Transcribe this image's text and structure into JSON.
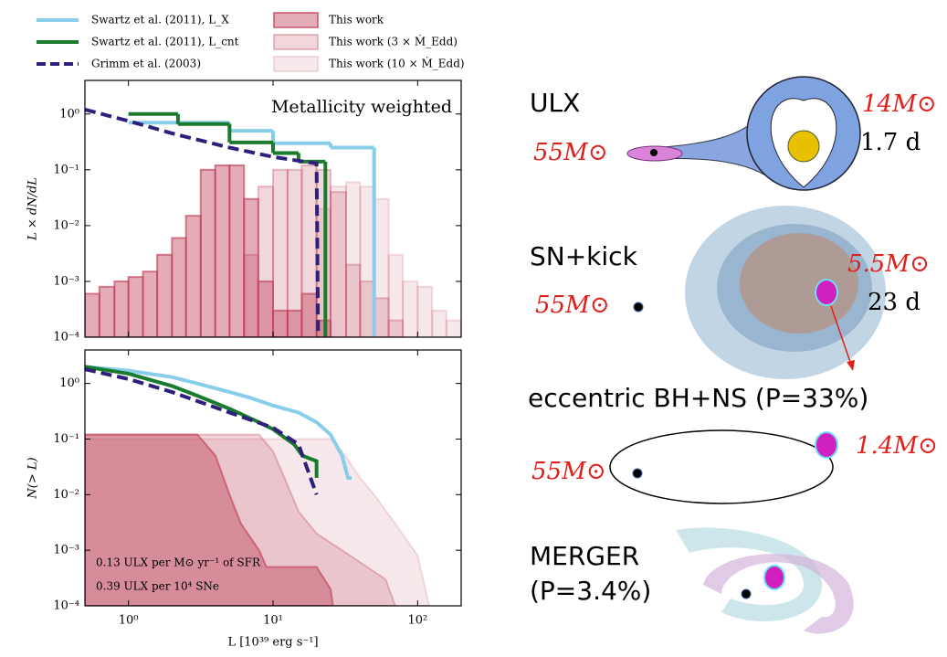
{
  "chart_data": [
    {
      "type": "line",
      "xscale": "log",
      "yscale": "log",
      "legend": "top",
      "ylabel": "L × dN/dL",
      "annotation": "Metallicity weighted",
      "xlim": [
        0.5,
        200
      ],
      "ylim": [
        0.0001,
        4
      ],
      "xticks": [
        {
          "value": 1,
          "label": "10⁰"
        },
        {
          "value": 10,
          "label": "10¹"
        },
        {
          "value": 100,
          "label": "10²"
        }
      ],
      "yticks": [
        {
          "value": 0.0001,
          "label": "10⁻⁴"
        },
        {
          "value": 0.001,
          "label": "10⁻³"
        },
        {
          "value": 0.01,
          "label": "10⁻²"
        },
        {
          "value": 0.1,
          "label": "10⁻¹"
        },
        {
          "value": 1,
          "label": "10⁰"
        }
      ],
      "series": [
        {
          "name": "This work (10 × Ṁ_Edd)",
          "type": "histogram",
          "color": "#c0465e",
          "opacity": 0.12,
          "bins": [
            20,
            25,
            32,
            40,
            50,
            63,
            79,
            100,
            126,
            158,
            200
          ],
          "values": [
            0.02,
            0.05,
            0.06,
            0.05,
            0.03,
            0.003,
            0.001,
            0.0008,
            0.0003,
            0.0002
          ]
        },
        {
          "name": "This work (3 × Ṁ_Edd)",
          "type": "histogram",
          "color": "#c0465e",
          "opacity": 0.22,
          "bins": [
            6.3,
            7.9,
            10,
            12.6,
            15.8,
            20,
            25,
            32,
            40,
            50,
            63,
            79
          ],
          "values": [
            0.003,
            0.05,
            0.1,
            0.1,
            0.12,
            0.1,
            0.04,
            0.002,
            0.001,
            0.0005,
            0.0002
          ]
        },
        {
          "name": "This work",
          "type": "histogram",
          "color": "#c0465e",
          "opacity": 0.45,
          "bins": [
            0.5,
            0.63,
            0.8,
            1,
            1.26,
            1.58,
            2,
            2.5,
            3.16,
            3.98,
            5,
            6.3,
            7.9,
            10,
            12.6,
            15.8,
            20,
            25
          ],
          "values": [
            0.0006,
            0.0008,
            0.001,
            0.0012,
            0.0015,
            0.003,
            0.006,
            0.015,
            0.1,
            0.12,
            0.12,
            0.03,
            0.001,
            0.0003,
            0.0003,
            0.0006,
            0.0002
          ]
        },
        {
          "name": "Swartz et al. (2011), L_X",
          "type": "step",
          "color": "#87ceeb",
          "bins": [
            1,
            5,
            10,
            25,
            50
          ],
          "values": [
            0.7,
            0.5,
            0.3,
            0.25
          ]
        },
        {
          "name": "Swartz et al. (2011), L_cnt",
          "type": "step",
          "color": "#1a7a2e",
          "bins": [
            1,
            2.2,
            5,
            10,
            15,
            23
          ],
          "values": [
            1,
            0.66,
            0.31,
            0.2,
            0.14
          ]
        },
        {
          "name": "Grimm et al. (2003)",
          "type": "line",
          "dash": true,
          "color": "#2e1f7a",
          "x": [
            0.5,
            1,
            2,
            5,
            10,
            20,
            20.5
          ],
          "values": [
            1.2,
            0.75,
            0.45,
            0.25,
            0.17,
            0.13,
            0.0001
          ]
        }
      ]
    },
    {
      "type": "line",
      "xscale": "log",
      "yscale": "log",
      "ylabel": "N(> L)",
      "xlabel": "L [10³⁹ erg s⁻¹]",
      "annotations": [
        "0.13 ULX per M⊙ yr⁻¹ of SFR",
        "0.39 ULX per 10⁴ SNe"
      ],
      "xlim": [
        0.5,
        200
      ],
      "ylim": [
        0.0001,
        4
      ],
      "xticks": [
        {
          "value": 1,
          "label": "10⁰"
        },
        {
          "value": 10,
          "label": "10¹"
        },
        {
          "value": 100,
          "label": "10²"
        }
      ],
      "yticks": [
        {
          "value": 0.0001,
          "label": "10⁻⁴"
        },
        {
          "value": 0.001,
          "label": "10⁻³"
        },
        {
          "value": 0.01,
          "label": "10⁻²"
        },
        {
          "value": 0.1,
          "label": "10⁻¹"
        },
        {
          "value": 1,
          "label": "10⁰"
        }
      ],
      "series": [
        {
          "type": "area",
          "color": "#c0465e",
          "opacity": 0.12,
          "x": [
            0.5,
            25,
            30,
            40,
            50,
            70,
            100,
            120
          ],
          "values": [
            0.1,
            0.1,
            0.06,
            0.02,
            0.01,
            0.003,
            0.0008,
            0.0001
          ]
        },
        {
          "type": "area",
          "color": "#c0465e",
          "opacity": 0.22,
          "x": [
            0.5,
            8,
            10,
            12,
            15,
            20,
            30,
            60,
            70
          ],
          "values": [
            0.12,
            0.12,
            0.06,
            0.02,
            0.005,
            0.002,
            0.001,
            0.0003,
            0.0001
          ]
        },
        {
          "type": "area",
          "color": "#c0465e",
          "opacity": 0.45,
          "x": [
            0.5,
            3,
            4,
            5,
            6,
            8,
            9,
            20,
            25,
            26
          ],
          "values": [
            0.12,
            0.12,
            0.05,
            0.01,
            0.003,
            0.001,
            0.0005,
            0.0005,
            0.0002,
            0.0001
          ]
        },
        {
          "type": "line",
          "color": "#87ceeb",
          "x": [
            0.5,
            1,
            2,
            3,
            5,
            7,
            10,
            15,
            20,
            25,
            30,
            33,
            35
          ],
          "values": [
            2,
            1.7,
            1.3,
            1.0,
            0.7,
            0.55,
            0.4,
            0.3,
            0.2,
            0.12,
            0.05,
            0.02,
            0.02
          ]
        },
        {
          "type": "line",
          "color": "#1a7a2e",
          "x": [
            0.5,
            1,
            2,
            3,
            5,
            8,
            10,
            14,
            16,
            20,
            20
          ],
          "values": [
            2,
            1.5,
            0.9,
            0.6,
            0.35,
            0.2,
            0.15,
            0.08,
            0.05,
            0.04,
            0.02
          ]
        },
        {
          "type": "line",
          "dash": true,
          "color": "#2e1f7a",
          "x": [
            0.5,
            1,
            2,
            5,
            10,
            15,
            20
          ],
          "values": [
            1.8,
            1.2,
            0.7,
            0.3,
            0.16,
            0.08,
            0.01
          ]
        }
      ]
    }
  ],
  "diagram": {
    "panels": [
      {
        "title": "ULX",
        "bh_mass": "55M⊙",
        "companion_mass": "14M⊙",
        "period": "1.7 d"
      },
      {
        "title": "SN+kick",
        "bh_mass": "55M⊙",
        "companion_mass": "5.5M⊙",
        "period": "23 d"
      },
      {
        "title": "eccentric BH+NS (P=33%)",
        "bh_mass": "55M⊙",
        "companion_mass": "1.4M⊙"
      },
      {
        "title": "MERGER",
        "subtitle": "(P=3.4%)"
      }
    ]
  }
}
